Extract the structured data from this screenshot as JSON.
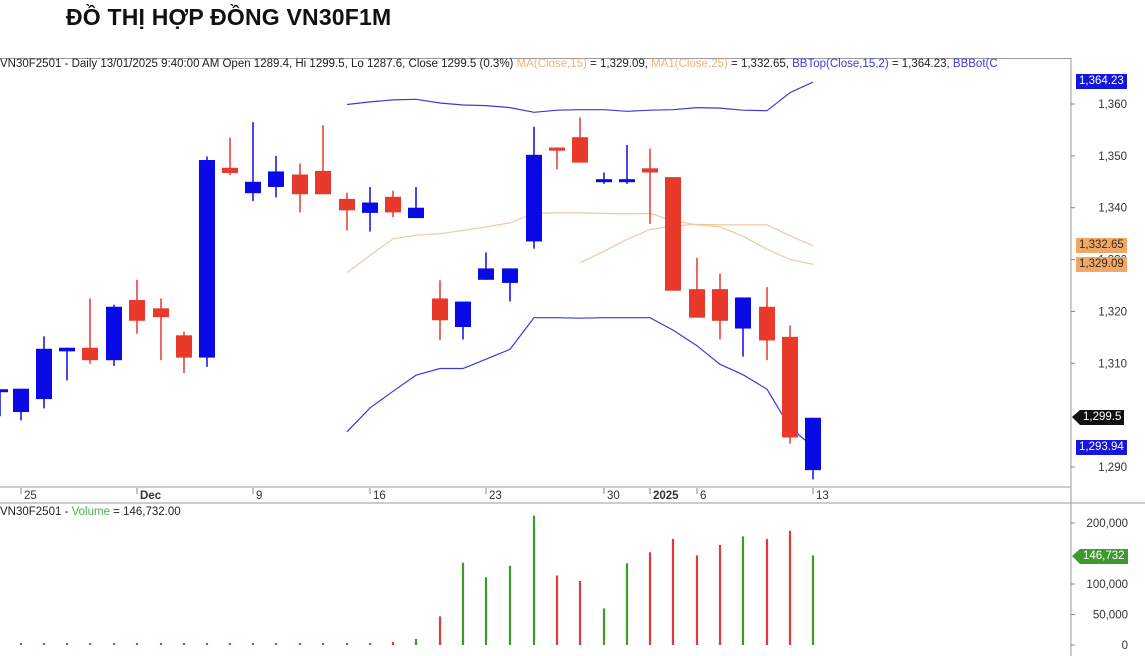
{
  "page": {
    "title": "ĐỒ THỊ HỢP ĐỒNG VN30F1M"
  },
  "price_panel": {
    "legend": {
      "symbol_line": "VN30F2501 - Daily 13/01/2025 9:40:00 AM Open 1289.4, Hi 1299.5, Lo 1287.6, Close 1299.5 (0.3%)",
      "ma15_name": "MA(Close,15)",
      "ma15_value": " = 1,329.09, ",
      "ma25_name": "MA1(Close,25)",
      "ma25_value": " = 1,332.65, ",
      "bbtop_name": "BBTop(Close,15,2)",
      "bbtop_value": " = 1,364.23, ",
      "bbbot_name": "BBBot(C"
    },
    "y_ticks": [
      "1,360",
      "1,350",
      "1,340",
      "1,330",
      "1,320",
      "1,310",
      "1,290"
    ],
    "tags": {
      "bbtop": "1,364.23",
      "ma25": "1,332.65",
      "ma15": "1,329.09",
      "close": "1,299.5",
      "bbbot": "1,293.94"
    },
    "x_ticks": [
      "25",
      "Dec",
      "9",
      "16",
      "23",
      "30",
      "2025",
      "6",
      "13"
    ]
  },
  "volume_panel": {
    "legend": {
      "symbol": "VN30F2501 - ",
      "name": "Volume",
      "value": " = 146,732.00"
    },
    "y_ticks": [
      "200,000",
      "100,000",
      "50,000",
      "0"
    ],
    "tag": "146,732"
  },
  "colors": {
    "up_candle": "#0a0ae6",
    "down_candle": "#e8392a",
    "ma_line": "#f3c7a0",
    "bb_line": "#3b3bd6",
    "vol_up": "#3f9a2e",
    "vol_down": "#e03a3a",
    "tag_blue": "#1515e0",
    "tag_orange": "#f0a868",
    "tag_green": "#3f9a2e"
  },
  "chart_data": {
    "type": "candlestick",
    "title": "ĐỒ THỊ HỢP ĐỒNG VN30F1M",
    "symbol": "VN30F2501",
    "interval": "Daily",
    "x_tick_labels": [
      "25",
      "Dec",
      "9",
      "16",
      "23",
      "30",
      "2025",
      "6",
      "13"
    ],
    "ylim": [
      1286,
      1366
    ],
    "candles": [
      {
        "x": 0,
        "o": 1304.5,
        "h": 1304.5,
        "l": 1299.8,
        "c": 1305.0,
        "dir": "up"
      },
      {
        "x": 21,
        "o": 1300.6,
        "h": 1305.1,
        "l": 1299.0,
        "c": 1305.1,
        "dir": "up"
      },
      {
        "x": 44,
        "o": 1303.1,
        "h": 1315.2,
        "l": 1301.3,
        "c": 1312.8,
        "dir": "up"
      },
      {
        "x": 67,
        "o": 1312.3,
        "h": 1313.0,
        "l": 1306.7,
        "c": 1313.0,
        "dir": "up"
      },
      {
        "x": 90,
        "o": 1313.0,
        "h": 1322.5,
        "l": 1309.9,
        "c": 1310.6,
        "dir": "down"
      },
      {
        "x": 114,
        "o": 1310.6,
        "h": 1321.3,
        "l": 1309.5,
        "c": 1320.9,
        "dir": "up"
      },
      {
        "x": 137,
        "o": 1322.2,
        "h": 1326.1,
        "l": 1315.7,
        "c": 1318.2,
        "dir": "down"
      },
      {
        "x": 161,
        "o": 1320.6,
        "h": 1322.5,
        "l": 1310.6,
        "c": 1318.9,
        "dir": "down"
      },
      {
        "x": 184,
        "o": 1315.4,
        "h": 1316.1,
        "l": 1308.1,
        "c": 1311.1,
        "dir": "down"
      },
      {
        "x": 207,
        "o": 1311.1,
        "h": 1349.9,
        "l": 1309.3,
        "c": 1349.2,
        "dir": "up"
      },
      {
        "x": 230,
        "o": 1347.7,
        "h": 1353.5,
        "l": 1346.3,
        "c": 1346.7,
        "dir": "down"
      },
      {
        "x": 253,
        "o": 1342.8,
        "h": 1356.5,
        "l": 1341.3,
        "c": 1345.0,
        "dir": "up"
      },
      {
        "x": 276,
        "o": 1344.0,
        "h": 1350.0,
        "l": 1342.0,
        "c": 1347.0,
        "dir": "up"
      },
      {
        "x": 300,
        "o": 1346.4,
        "h": 1348.5,
        "l": 1339.1,
        "c": 1342.6,
        "dir": "down"
      },
      {
        "x": 323,
        "o": 1347.1,
        "h": 1355.9,
        "l": 1343.3,
        "c": 1342.6,
        "dir": "down"
      },
      {
        "x": 347,
        "o": 1341.7,
        "h": 1342.9,
        "l": 1335.6,
        "c": 1339.5,
        "dir": "down"
      },
      {
        "x": 370,
        "o": 1339.0,
        "h": 1344.0,
        "l": 1335.4,
        "c": 1341.0,
        "dir": "up"
      },
      {
        "x": 393,
        "o": 1342.1,
        "h": 1343.3,
        "l": 1338.2,
        "c": 1339.1,
        "dir": "down"
      },
      {
        "x": 416,
        "o": 1338.0,
        "h": 1344.0,
        "l": 1338.0,
        "c": 1340.0,
        "dir": "up"
      },
      {
        "x": 440,
        "o": 1322.5,
        "h": 1326.0,
        "l": 1314.5,
        "c": 1318.3,
        "dir": "down"
      },
      {
        "x": 463,
        "o": 1317.0,
        "h": 1321.5,
        "l": 1314.6,
        "c": 1321.9,
        "dir": "up"
      },
      {
        "x": 486,
        "o": 1326.1,
        "h": 1331.4,
        "l": 1326.1,
        "c": 1328.3,
        "dir": "up"
      },
      {
        "x": 510,
        "o": 1325.5,
        "h": 1328.3,
        "l": 1321.9,
        "c": 1328.3,
        "dir": "up"
      },
      {
        "x": 534,
        "o": 1333.5,
        "h": 1355.6,
        "l": 1332.1,
        "c": 1350.2,
        "dir": "up"
      },
      {
        "x": 557,
        "o": 1351.6,
        "h": 1351.6,
        "l": 1347.4,
        "c": 1351.0,
        "dir": "down"
      },
      {
        "x": 580,
        "o": 1353.6,
        "h": 1357.4,
        "l": 1348.7,
        "c": 1348.7,
        "dir": "down"
      },
      {
        "x": 604,
        "o": 1345.0,
        "h": 1346.8,
        "l": 1344.6,
        "c": 1345.5,
        "dir": "up"
      },
      {
        "x": 627,
        "o": 1345.0,
        "h": 1352.1,
        "l": 1344.6,
        "c": 1345.5,
        "dir": "up"
      },
      {
        "x": 650,
        "o": 1347.6,
        "h": 1351.4,
        "l": 1336.9,
        "c": 1346.8,
        "dir": "down"
      },
      {
        "x": 673,
        "o": 1345.9,
        "h": 1345.9,
        "l": 1324.0,
        "c": 1324.0,
        "dir": "down"
      },
      {
        "x": 697,
        "o": 1324.3,
        "h": 1330.3,
        "l": 1318.8,
        "c": 1318.8,
        "dir": "down"
      },
      {
        "x": 720,
        "o": 1324.3,
        "h": 1327.3,
        "l": 1314.6,
        "c": 1318.2,
        "dir": "down"
      },
      {
        "x": 743,
        "o": 1316.7,
        "h": 1322.7,
        "l": 1311.3,
        "c": 1322.7,
        "dir": "up"
      },
      {
        "x": 767,
        "o": 1320.9,
        "h": 1324.7,
        "l": 1310.6,
        "c": 1314.4,
        "dir": "down"
      },
      {
        "x": 790,
        "o": 1315.1,
        "h": 1317.3,
        "l": 1294.5,
        "c": 1295.7,
        "dir": "down"
      },
      {
        "x": 813,
        "o": 1289.4,
        "h": 1299.5,
        "l": 1287.6,
        "c": 1299.5,
        "dir": "up"
      }
    ],
    "indicators": {
      "MA(Close,15)": 1329.09,
      "MA1(Close,25)": 1332.65,
      "BBTop(Close,15,2)": 1364.23,
      "BBBot(Close,15,2)": 1293.94
    },
    "ma15_line": [
      [
        347,
        1327.5
      ],
      [
        370,
        1330.8
      ],
      [
        393,
        1334.0
      ],
      [
        416,
        1334.7
      ],
      [
        440,
        1335.0
      ],
      [
        463,
        1335.6
      ],
      [
        486,
        1336.3
      ],
      [
        510,
        1337.1
      ],
      [
        534,
        1338.9
      ],
      [
        557,
        1339.0
      ],
      [
        580,
        1339.0
      ],
      [
        604,
        1338.9
      ],
      [
        627,
        1338.8
      ],
      [
        650,
        1338.9
      ],
      [
        673,
        1337.5
      ],
      [
        697,
        1336.7
      ],
      [
        720,
        1336.3
      ],
      [
        743,
        1334.5
      ],
      [
        767,
        1332.0
      ],
      [
        790,
        1330.0
      ],
      [
        813,
        1329.09
      ]
    ],
    "ma25_line": [
      [
        580,
        1329.4
      ],
      [
        604,
        1331.6
      ],
      [
        627,
        1333.9
      ],
      [
        650,
        1335.8
      ],
      [
        673,
        1336.5
      ],
      [
        697,
        1336.8
      ],
      [
        720,
        1336.7
      ],
      [
        743,
        1336.7
      ],
      [
        767,
        1336.7
      ],
      [
        790,
        1334.6
      ],
      [
        813,
        1332.65
      ]
    ],
    "bb_top_line": [
      [
        347,
        1359.9
      ],
      [
        370,
        1360.4
      ],
      [
        393,
        1360.8
      ],
      [
        416,
        1360.9
      ],
      [
        440,
        1360.2
      ],
      [
        463,
        1359.8
      ],
      [
        486,
        1359.7
      ],
      [
        510,
        1359.3
      ],
      [
        534,
        1358.4
      ],
      [
        557,
        1358.8
      ],
      [
        580,
        1358.9
      ],
      [
        604,
        1358.9
      ],
      [
        627,
        1358.6
      ],
      [
        650,
        1358.8
      ],
      [
        673,
        1358.9
      ],
      [
        697,
        1359.3
      ],
      [
        720,
        1359.2
      ],
      [
        743,
        1358.8
      ],
      [
        767,
        1358.7
      ],
      [
        790,
        1362.2
      ],
      [
        813,
        1364.23
      ]
    ],
    "bb_bot_line": [
      [
        347,
        1296.8
      ],
      [
        370,
        1301.4
      ],
      [
        393,
        1304.6
      ],
      [
        416,
        1307.7
      ],
      [
        440,
        1309.0
      ],
      [
        463,
        1309.0
      ],
      [
        486,
        1310.8
      ],
      [
        510,
        1312.7
      ],
      [
        534,
        1318.8
      ],
      [
        557,
        1318.8
      ],
      [
        580,
        1318.7
      ],
      [
        604,
        1318.8
      ],
      [
        627,
        1318.8
      ],
      [
        650,
        1318.8
      ],
      [
        673,
        1316.4
      ],
      [
        697,
        1313.4
      ],
      [
        720,
        1309.8
      ],
      [
        743,
        1307.8
      ],
      [
        767,
        1305.0
      ],
      [
        790,
        1297.6
      ],
      [
        813,
        1293.94
      ]
    ],
    "volume": {
      "ylabel": "Volume",
      "ylim": [
        0,
        220000
      ],
      "last_value": 146732,
      "bars": [
        {
          "x": 21,
          "v": 500,
          "dir": "up"
        },
        {
          "x": 44,
          "v": 500,
          "dir": "up"
        },
        {
          "x": 67,
          "v": 500,
          "dir": "up"
        },
        {
          "x": 90,
          "v": 500,
          "dir": "up"
        },
        {
          "x": 114,
          "v": 500,
          "dir": "up"
        },
        {
          "x": 137,
          "v": 500,
          "dir": "down"
        },
        {
          "x": 161,
          "v": 500,
          "dir": "down"
        },
        {
          "x": 184,
          "v": 500,
          "dir": "down"
        },
        {
          "x": 207,
          "v": 500,
          "dir": "up"
        },
        {
          "x": 230,
          "v": 500,
          "dir": "down"
        },
        {
          "x": 253,
          "v": 500,
          "dir": "up"
        },
        {
          "x": 276,
          "v": 500,
          "dir": "up"
        },
        {
          "x": 300,
          "v": 500,
          "dir": "down"
        },
        {
          "x": 323,
          "v": 500,
          "dir": "down"
        },
        {
          "x": 347,
          "v": 500,
          "dir": "down"
        },
        {
          "x": 370,
          "v": 1000,
          "dir": "down"
        },
        {
          "x": 393,
          "v": 5000,
          "dir": "down"
        },
        {
          "x": 416,
          "v": 10000,
          "dir": "up"
        },
        {
          "x": 440,
          "v": 47000,
          "dir": "down"
        },
        {
          "x": 463,
          "v": 135000,
          "dir": "up"
        },
        {
          "x": 486,
          "v": 111000,
          "dir": "up"
        },
        {
          "x": 510,
          "v": 130000,
          "dir": "up"
        },
        {
          "x": 534,
          "v": 212000,
          "dir": "up"
        },
        {
          "x": 557,
          "v": 114000,
          "dir": "down"
        },
        {
          "x": 580,
          "v": 105000,
          "dir": "down"
        },
        {
          "x": 604,
          "v": 60000,
          "dir": "up"
        },
        {
          "x": 627,
          "v": 134000,
          "dir": "up"
        },
        {
          "x": 650,
          "v": 152000,
          "dir": "down"
        },
        {
          "x": 673,
          "v": 174000,
          "dir": "down"
        },
        {
          "x": 697,
          "v": 147000,
          "dir": "down"
        },
        {
          "x": 720,
          "v": 164000,
          "dir": "down"
        },
        {
          "x": 743,
          "v": 178000,
          "dir": "up"
        },
        {
          "x": 767,
          "v": 174000,
          "dir": "down"
        },
        {
          "x": 790,
          "v": 187000,
          "dir": "down"
        },
        {
          "x": 813,
          "v": 146732,
          "dir": "up"
        }
      ]
    }
  }
}
